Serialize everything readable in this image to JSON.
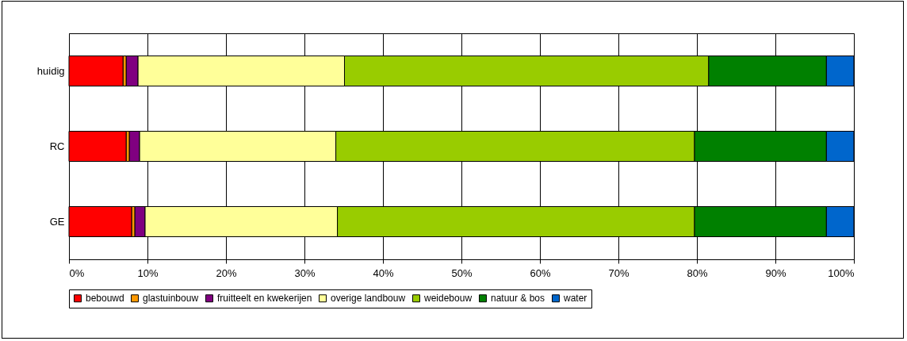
{
  "chart_data": {
    "type": "bar",
    "orientation": "horizontal",
    "stacked": true,
    "categories": [
      "huidig",
      "RC",
      "GE"
    ],
    "series": [
      {
        "name": "bebouwd",
        "color": "#ff0000",
        "values": [
          6.9,
          7.3,
          8.0
        ]
      },
      {
        "name": "glastuinbouw",
        "color": "#ff9900",
        "values": [
          0.4,
          0.4,
          0.4
        ]
      },
      {
        "name": "fruitteelt en kwekerijen",
        "color": "#800080",
        "values": [
          1.5,
          1.3,
          1.3
        ]
      },
      {
        "name": "overige landbouw",
        "color": "#ffff99",
        "values": [
          26.3,
          25.0,
          24.5
        ]
      },
      {
        "name": "weidebouw",
        "color": "#99cc00",
        "values": [
          46.4,
          45.7,
          45.5
        ]
      },
      {
        "name": "natuur & bos",
        "color": "#008000",
        "values": [
          15.0,
          16.8,
          16.8
        ]
      },
      {
        "name": "water",
        "color": "#0066cc",
        "values": [
          3.5,
          3.5,
          3.5
        ]
      }
    ],
    "xlim": [
      0,
      100
    ],
    "xticks": [
      {
        "value": 0,
        "label": "0%"
      },
      {
        "value": 10,
        "label": "10%"
      },
      {
        "value": 20,
        "label": "20%"
      },
      {
        "value": 30,
        "label": "30%"
      },
      {
        "value": 40,
        "label": "40%"
      },
      {
        "value": 50,
        "label": "50%"
      },
      {
        "value": 60,
        "label": "60%"
      },
      {
        "value": 70,
        "label": "70%"
      },
      {
        "value": 80,
        "label": "80%"
      },
      {
        "value": 90,
        "label": "90%"
      },
      {
        "value": 100,
        "label": "100%"
      }
    ],
    "grid": "x",
    "legend": "bottom"
  }
}
